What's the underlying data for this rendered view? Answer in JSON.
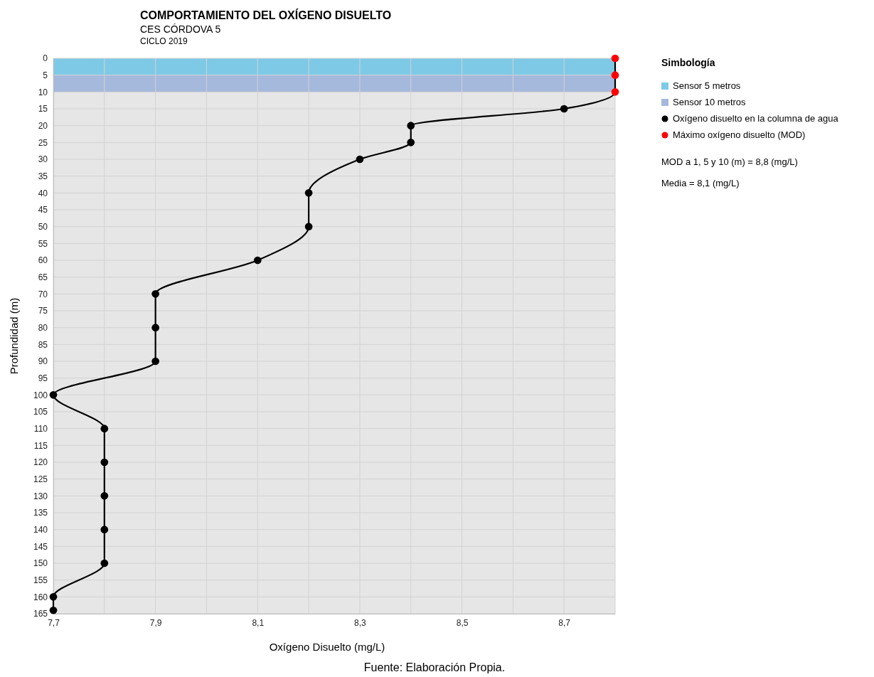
{
  "chart_data": {
    "type": "line",
    "title": "COMPORTAMIENTO DEL OXÍGENO DISUELTO",
    "subtitle": "CES CÓRDOVA 5\nCICLO 2019",
    "xlabel": "Oxígeno Disuelto (mg/L)",
    "ylabel": "Profundidad (m)",
    "legend_title": "Simbología",
    "xlim": [
      7.7,
      8.8
    ],
    "xticks": [
      {
        "value": 7.7,
        "label": "7,7"
      },
      {
        "value": 7.8,
        "label": null
      },
      {
        "value": 7.9,
        "label": "7,9"
      },
      {
        "value": 8.0,
        "label": null
      },
      {
        "value": 8.1,
        "label": "8,1"
      },
      {
        "value": 8.2,
        "label": null
      },
      {
        "value": 8.3,
        "label": "8,3"
      },
      {
        "value": 8.4,
        "label": null
      },
      {
        "value": 8.5,
        "label": "8,5"
      },
      {
        "value": 8.6,
        "label": null
      },
      {
        "value": 8.7,
        "label": "8,7"
      },
      {
        "value": 8.8,
        "label": null
      }
    ],
    "ylim": [
      165,
      0
    ],
    "yticks": [
      0,
      5,
      10,
      15,
      20,
      25,
      30,
      35,
      40,
      45,
      50,
      55,
      60,
      65,
      70,
      75,
      80,
      85,
      90,
      95,
      100,
      105,
      110,
      115,
      120,
      125,
      130,
      135,
      140,
      145,
      150,
      155,
      160,
      165
    ],
    "grid": true,
    "legend": "top right",
    "marker": "circle",
    "line_style": "solid",
    "bands": [
      {
        "axis": "y",
        "from": 0,
        "to": 5,
        "label": "Sensor 5 metros",
        "color": "#7ecae6"
      },
      {
        "axis": "y",
        "from": 5,
        "to": 10,
        "label": "Sensor 10 metros",
        "color": "#a5b9dd"
      }
    ],
    "series": [
      {
        "color": "#000000",
        "marker": "none",
        "x": [
          8.8,
          8.8,
          8.8,
          8.7,
          8.4,
          8.4,
          8.3,
          8.2,
          8.2,
          8.1,
          7.9,
          7.9,
          7.9,
          7.7,
          7.8,
          7.8,
          7.8,
          7.8,
          7.8,
          7.7,
          7.7
        ],
        "values": [
          0,
          5,
          10,
          15,
          20,
          25,
          30,
          40,
          50,
          60,
          70,
          80,
          90,
          100,
          110,
          120,
          130,
          140,
          150,
          160,
          164
        ]
      },
      {
        "type": "scatter",
        "name": "Oxígeno disuelto en la columna de agua",
        "color": "#000000",
        "x": [
          8.7,
          8.4,
          8.4,
          8.3,
          8.2,
          8.2,
          8.1,
          7.9,
          7.9,
          7.9,
          7.7,
          7.8,
          7.8,
          7.8,
          7.8,
          7.8,
          7.7,
          7.7
        ],
        "values": [
          15,
          20,
          25,
          30,
          40,
          50,
          60,
          70,
          80,
          90,
          100,
          110,
          120,
          130,
          140,
          150,
          160,
          164
        ]
      },
      {
        "type": "scatter",
        "name": "Máximo oxígeno disuelto (MOD)",
        "color": "#ff0000",
        "x": [
          8.8,
          8.8,
          8.8
        ],
        "values": [
          0,
          5,
          10
        ]
      }
    ],
    "annotations": [
      "MOD a 1, 5 y 10 (m) = 8,8 (mg/L)",
      "Media = 8,1 (mg/L)",
      "Fuente: Elaboración Propia."
    ]
  }
}
